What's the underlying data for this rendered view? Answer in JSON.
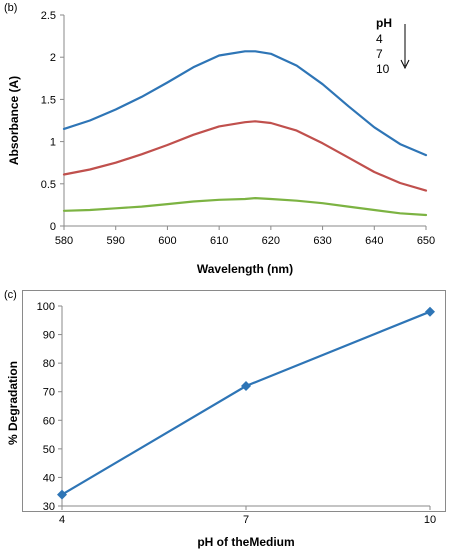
{
  "chart_data": [
    {
      "panel_label": "(b)",
      "type": "line",
      "xlabel": "Wavelength (nm)",
      "ylabel": "Absorbance (A)",
      "xlim": [
        580,
        650
      ],
      "ylim": [
        0,
        2.5
      ],
      "x_ticks": [
        "580",
        "590",
        "600",
        "610",
        "620",
        "630",
        "640",
        "650"
      ],
      "y_ticks": [
        "0",
        "0.5",
        "1",
        "1.5",
        "2",
        "2.5"
      ],
      "grid": false,
      "legend": {
        "title": "pH",
        "entries": [
          "4",
          "7",
          "10"
        ],
        "placement": "top-right",
        "arrow": "down"
      },
      "x": [
        580,
        585,
        590,
        595,
        600,
        605,
        610,
        615,
        617,
        620,
        625,
        630,
        635,
        640,
        645,
        650
      ],
      "series": [
        {
          "name": "4",
          "color": "#2e75b6",
          "values": [
            1.15,
            1.25,
            1.38,
            1.53,
            1.7,
            1.88,
            2.02,
            2.07,
            2.07,
            2.04,
            1.9,
            1.68,
            1.42,
            1.17,
            0.97,
            0.84
          ]
        },
        {
          "name": "7",
          "color": "#c0504d",
          "values": [
            0.61,
            0.67,
            0.75,
            0.85,
            0.96,
            1.08,
            1.18,
            1.23,
            1.24,
            1.22,
            1.13,
            0.98,
            0.81,
            0.64,
            0.51,
            0.42
          ]
        },
        {
          "name": "10",
          "color": "#7cb342",
          "values": [
            0.18,
            0.19,
            0.21,
            0.23,
            0.26,
            0.29,
            0.31,
            0.32,
            0.33,
            0.32,
            0.3,
            0.27,
            0.23,
            0.19,
            0.15,
            0.13
          ]
        }
      ]
    },
    {
      "panel_label": "(c)",
      "type": "line",
      "xlabel": "pH of theMedium",
      "ylabel": "% Degradation",
      "categories": [
        "4",
        "7",
        "10"
      ],
      "ylim": [
        30,
        100
      ],
      "y_ticks": [
        "30",
        "40",
        "50",
        "60",
        "70",
        "80",
        "90",
        "100"
      ],
      "grid": false,
      "series": [
        {
          "name": "",
          "color": "#2e75b6",
          "marker": "diamond",
          "values": [
            34,
            72,
            98
          ]
        }
      ]
    }
  ]
}
